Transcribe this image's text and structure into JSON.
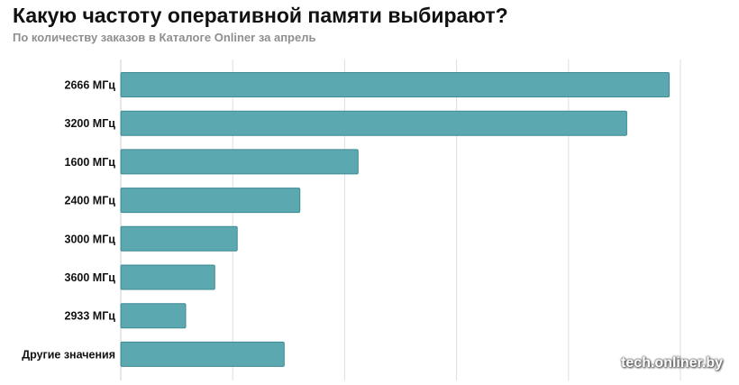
{
  "chart_data": {
    "type": "bar",
    "orientation": "horizontal",
    "title": "Какую частоту оперативной памяти выбирают?",
    "subtitle": "По количеству заказов в Каталоге Onliner за апрель",
    "categories": [
      "2666 МГц",
      "3200 МГц",
      "1600 МГц",
      "2400 МГц",
      "3000 МГц",
      "3600 МГц",
      "2933 МГц",
      "Другие значения"
    ],
    "values": [
      24.5,
      22.6,
      10.6,
      8.0,
      5.2,
      4.2,
      2.9,
      7.3
    ],
    "xlim": [
      0,
      25
    ],
    "grid": true,
    "bar_color": "#5ba8b1",
    "bar_border_color": "#3f8a93",
    "grid_color": "#dedede",
    "watermark": "tech.onliner.by"
  }
}
